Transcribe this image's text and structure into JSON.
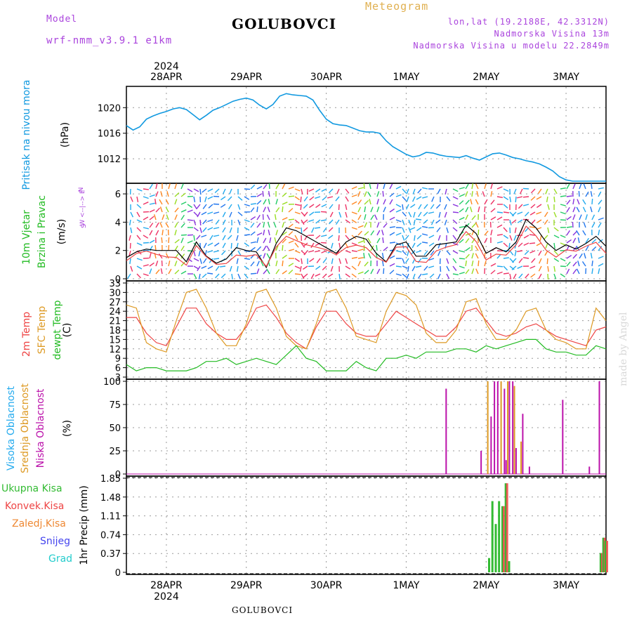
{
  "header": {
    "model_label": "Model",
    "model_value": "wrf-nmm_v3.9.1 e1km",
    "title": "GOLUBOVCI",
    "meteogram_label": "Meteogram",
    "lonlat": "lon,lat (19.2188E, 42.3312N)",
    "altitude": "Nadmorska Visina 13m",
    "model_altitude": "Nadmorska Visina u modelu 22.2849m",
    "bottom_station": "GOLUBOVCI",
    "watermark": "made by Angel"
  },
  "colors": {
    "model": "#aa44dd",
    "meteogram": "#e0b050",
    "pressure": "#1199e0",
    "temp2m": "#ee4444",
    "sfc": "#dd9922",
    "dewpt": "#22bb22",
    "high_cloud": "#22aaee",
    "mid_cloud": "#dd9922",
    "low_cloud": "#bb11aa",
    "total_precip": "#33bb33",
    "conv_precip": "#ee4444",
    "frz_precip": "#ee8833",
    "snow": "#4444ee",
    "hail": "#22cccc",
    "grid": "#999999"
  },
  "chart_data": [
    {
      "type": "line",
      "panel": "pressure",
      "ylabel": [
        "Pritisak na nivou mora",
        "(hPa)"
      ],
      "ylim": [
        1008.5,
        1023
      ],
      "yticks": [
        1012,
        1016,
        1020
      ],
      "top_year": "2024",
      "top_day_labels": [
        "28APR",
        "29APR",
        "30APR",
        "1MAY",
        "2MAY",
        "3MAY"
      ],
      "day_positions_hours": [
        24,
        48,
        72,
        96,
        120,
        144
      ],
      "x_hours_range": [
        12,
        156
      ],
      "x": [
        12,
        14,
        16,
        18,
        20,
        22,
        24,
        26,
        28,
        30,
        32,
        34,
        36,
        38,
        40,
        42,
        44,
        46,
        48,
        50,
        52,
        54,
        56,
        58,
        60,
        62,
        64,
        66,
        68,
        70,
        72,
        74,
        76,
        78,
        80,
        82,
        84,
        86,
        88,
        90,
        92,
        94,
        96,
        98,
        100,
        102,
        104,
        106,
        108,
        110,
        112,
        114,
        116,
        118,
        120,
        122,
        124,
        126,
        128,
        130,
        132,
        134,
        136,
        138,
        140,
        142,
        144,
        146,
        148,
        150,
        152,
        154,
        156
      ],
      "values": [
        1017.2,
        1016.5,
        1017.0,
        1018.2,
        1018.7,
        1019.1,
        1019.4,
        1019.8,
        1020.0,
        1019.7,
        1018.9,
        1018.1,
        1018.8,
        1019.6,
        1020.0,
        1020.5,
        1021.0,
        1021.3,
        1021.5,
        1021.2,
        1020.4,
        1019.8,
        1020.5,
        1021.8,
        1022.2,
        1022.0,
        1021.9,
        1021.8,
        1021.2,
        1019.6,
        1018.2,
        1017.5,
        1017.3,
        1017.2,
        1016.8,
        1016.4,
        1016.2,
        1016.2,
        1016.0,
        1014.8,
        1013.9,
        1013.3,
        1012.7,
        1012.3,
        1012.5,
        1013.0,
        1012.9,
        1012.6,
        1012.4,
        1012.3,
        1012.2,
        1012.5,
        1012.1,
        1011.8,
        1012.3,
        1012.8,
        1012.9,
        1012.6,
        1012.2,
        1012.0,
        1011.7,
        1011.5,
        1011.2,
        1010.7,
        1010.1,
        1009.2,
        1008.7,
        1008.5,
        1008.5,
        1008.5,
        1008.5,
        1008.5,
        1008.5
      ]
    },
    {
      "type": "line",
      "panel": "wind",
      "ylabel": [
        "10m Vjetar",
        "Brzina i Pravac",
        "(m/s)"
      ],
      "compass": [
        "N",
        "W <--|--> E",
        "S"
      ],
      "ylim": [
        0,
        6.6
      ],
      "yticks": [
        0,
        2,
        4,
        6
      ],
      "x": [
        12,
        15,
        18,
        21,
        24,
        27,
        30,
        33,
        36,
        39,
        42,
        45,
        48,
        51,
        54,
        57,
        60,
        63,
        66,
        69,
        72,
        75,
        78,
        81,
        84,
        87,
        90,
        93,
        96,
        99,
        102,
        105,
        108,
        111,
        114,
        117,
        120,
        123,
        126,
        129,
        132,
        135,
        138,
        141,
        144,
        147,
        150,
        153,
        156
      ],
      "values": [
        1.5,
        1.9,
        2.1,
        2.0,
        2.0,
        2.0,
        1.2,
        2.6,
        1.6,
        1.1,
        1.4,
        2.2,
        2.0,
        1.9,
        0.8,
        2.5,
        3.6,
        3.4,
        3.0,
        2.6,
        2.2,
        1.8,
        2.6,
        3.0,
        2.8,
        1.8,
        1.2,
        2.4,
        2.6,
        1.6,
        1.6,
        2.4,
        2.5,
        2.6,
        3.8,
        3.2,
        1.8,
        2.2,
        1.9,
        2.6,
        4.2,
        3.6,
        2.6,
        2.0,
        2.4,
        2.1,
        2.5,
        3.0,
        2.3
      ]
    },
    {
      "type": "line",
      "panel": "temperature",
      "ylabel": [
        "2m Temp",
        "SFC Temp",
        "dewpt Temp",
        "(C)"
      ],
      "ylim": [
        3,
        33
      ],
      "yticks": [
        3,
        6,
        9,
        12,
        15,
        18,
        21,
        24,
        27,
        30,
        33
      ],
      "x": [
        12,
        15,
        18,
        21,
        24,
        27,
        30,
        33,
        36,
        39,
        42,
        45,
        48,
        51,
        54,
        57,
        60,
        63,
        66,
        69,
        72,
        75,
        78,
        81,
        84,
        87,
        90,
        93,
        96,
        99,
        102,
        105,
        108,
        111,
        114,
        117,
        120,
        123,
        126,
        129,
        132,
        135,
        138,
        141,
        144,
        147,
        150,
        153,
        156
      ],
      "series": [
        {
          "name": "2m Temp",
          "values": [
            22,
            22,
            17,
            14,
            13,
            19,
            25,
            25,
            20,
            17,
            15,
            15,
            19,
            25,
            26,
            22,
            17,
            14,
            12,
            19,
            24,
            24,
            20,
            17,
            16,
            16,
            20,
            24,
            22,
            20,
            18,
            16,
            16,
            19,
            24,
            25,
            21,
            17,
            16,
            17,
            19,
            20,
            18,
            16,
            15,
            14,
            13,
            18,
            19
          ]
        },
        {
          "name": "SFC Temp",
          "values": [
            26,
            25,
            14,
            12,
            11,
            21,
            30,
            31,
            25,
            17,
            13,
            13,
            20,
            30,
            31,
            25,
            16,
            13,
            12,
            20,
            30,
            31,
            25,
            16,
            15,
            14,
            24,
            30,
            29,
            26,
            17,
            14,
            14,
            18,
            27,
            28,
            20,
            15,
            15,
            18,
            24,
            25,
            18,
            15,
            14,
            12,
            12,
            25,
            21
          ]
        },
        {
          "name": "dewpt Temp",
          "values": [
            7,
            5,
            6,
            6,
            5,
            5,
            5,
            6,
            8,
            8,
            9,
            7,
            8,
            9,
            8,
            7,
            10,
            13,
            9,
            8,
            5,
            5,
            5,
            8,
            6,
            5,
            9,
            9,
            10,
            9,
            11,
            11,
            11,
            12,
            12,
            11,
            13,
            12,
            13,
            14,
            15,
            15,
            12,
            11,
            11,
            10,
            10,
            13,
            12
          ]
        }
      ]
    },
    {
      "type": "bar",
      "panel": "cloud",
      "ylabel": [
        "Visoka Oblacnost",
        "Srednja Oblacnost",
        "Niska Oblacnost",
        "(%)"
      ],
      "ylim": [
        0,
        100
      ],
      "yticks": [
        0,
        25,
        50,
        75,
        100
      ],
      "series": [
        {
          "name": "Visoka Oblacnost",
          "x": [],
          "values": []
        },
        {
          "name": "Srednja Oblacnost",
          "x": [
            120.5,
            124.5,
            126.5,
            128.5,
            130.5
          ],
          "values": [
            100,
            100,
            100,
            95,
            35
          ]
        },
        {
          "name": "Niska Oblacnost",
          "x": [
            108,
            118.5,
            121.5,
            122.5,
            123.5,
            125.5,
            126,
            127,
            128,
            129,
            131,
            133,
            143,
            151,
            154
          ],
          "values": [
            92,
            25,
            62,
            100,
            100,
            92,
            15,
            100,
            100,
            28,
            65,
            8,
            80,
            8,
            100
          ]
        }
      ]
    },
    {
      "type": "bar",
      "panel": "precip",
      "ylabel": [
        "1hr Precip (mm)"
      ],
      "legend": [
        "Ukupna Kisa",
        "Konvek.Kisa",
        "Zaledj.Kisa",
        "Snijeg",
        "Grad"
      ],
      "ylim": [
        0,
        1.85
      ],
      "yticks": [
        0,
        0.37,
        0.74,
        1.11,
        1.48,
        1.85
      ],
      "x": [
        121.0,
        122.0,
        123.0,
        124.0,
        125.0,
        126.0,
        127.0,
        127.6,
        154.5,
        155.3,
        156.0
      ],
      "series": [
        {
          "name": "Ukupna Kisa",
          "values": [
            0.28,
            1.4,
            0.95,
            1.4,
            1.3,
            1.75,
            0.22,
            0,
            0.38,
            0.68,
            0.62
          ]
        },
        {
          "name": "Konvek.Kisa",
          "values": [
            0,
            0,
            0,
            0,
            1.3,
            1.75,
            0,
            0,
            0.38,
            0.68,
            0.62
          ]
        }
      ],
      "bottom_day_labels": [
        "28APR",
        "29APR",
        "30APR",
        "1MAY",
        "2MAY",
        "3MAY"
      ],
      "bottom_year": "2024"
    }
  ]
}
